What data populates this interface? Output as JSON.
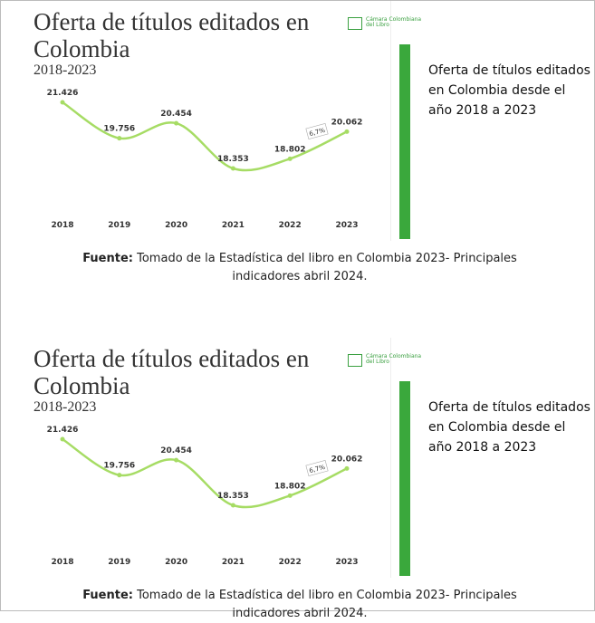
{
  "figures": [
    {
      "chart_data": {
        "type": "line",
        "title": "Oferta de títulos editados en Colombia",
        "subtitle": "2018-2023",
        "categories": [
          "2018",
          "2019",
          "2020",
          "2021",
          "2022",
          "2023"
        ],
        "values": [
          21426,
          19756,
          20454,
          18353,
          18802,
          20062
        ],
        "value_labels": [
          "21.426",
          "19.756",
          "20.454",
          "18.353",
          "18.802",
          "20.062"
        ],
        "annotation": "6,7%",
        "color": "#a6dc64",
        "logo": "Cámara Colombiana del Libro"
      },
      "side_text": "Oferta de títulos editados en Colombia desde el año 2018 a 2023",
      "caption_bold": "Fuente:",
      "caption": "Tomado de la Estadística del libro en Colombia 2023- Principales indicadores abril 2024."
    },
    {
      "chart_data": {
        "type": "line",
        "title": "Oferta de títulos editados en Colombia",
        "subtitle": "2018-2023",
        "categories": [
          "2018",
          "2019",
          "2020",
          "2021",
          "2022",
          "2023"
        ],
        "values": [
          21426,
          19756,
          20454,
          18353,
          18802,
          20062
        ],
        "value_labels": [
          "21.426",
          "19.756",
          "20.454",
          "18.353",
          "18.802",
          "20.062"
        ],
        "annotation": "6,7%",
        "color": "#a6dc64",
        "logo": "Cámara Colombiana del Libro"
      },
      "side_text": "Oferta de títulos editados en Colombia desde el año 2018 a 2023",
      "caption_bold": "Fuente:",
      "caption": "Tomado de la Estadística del libro en Colombia 2023- Principales indicadores abril 2024."
    }
  ]
}
